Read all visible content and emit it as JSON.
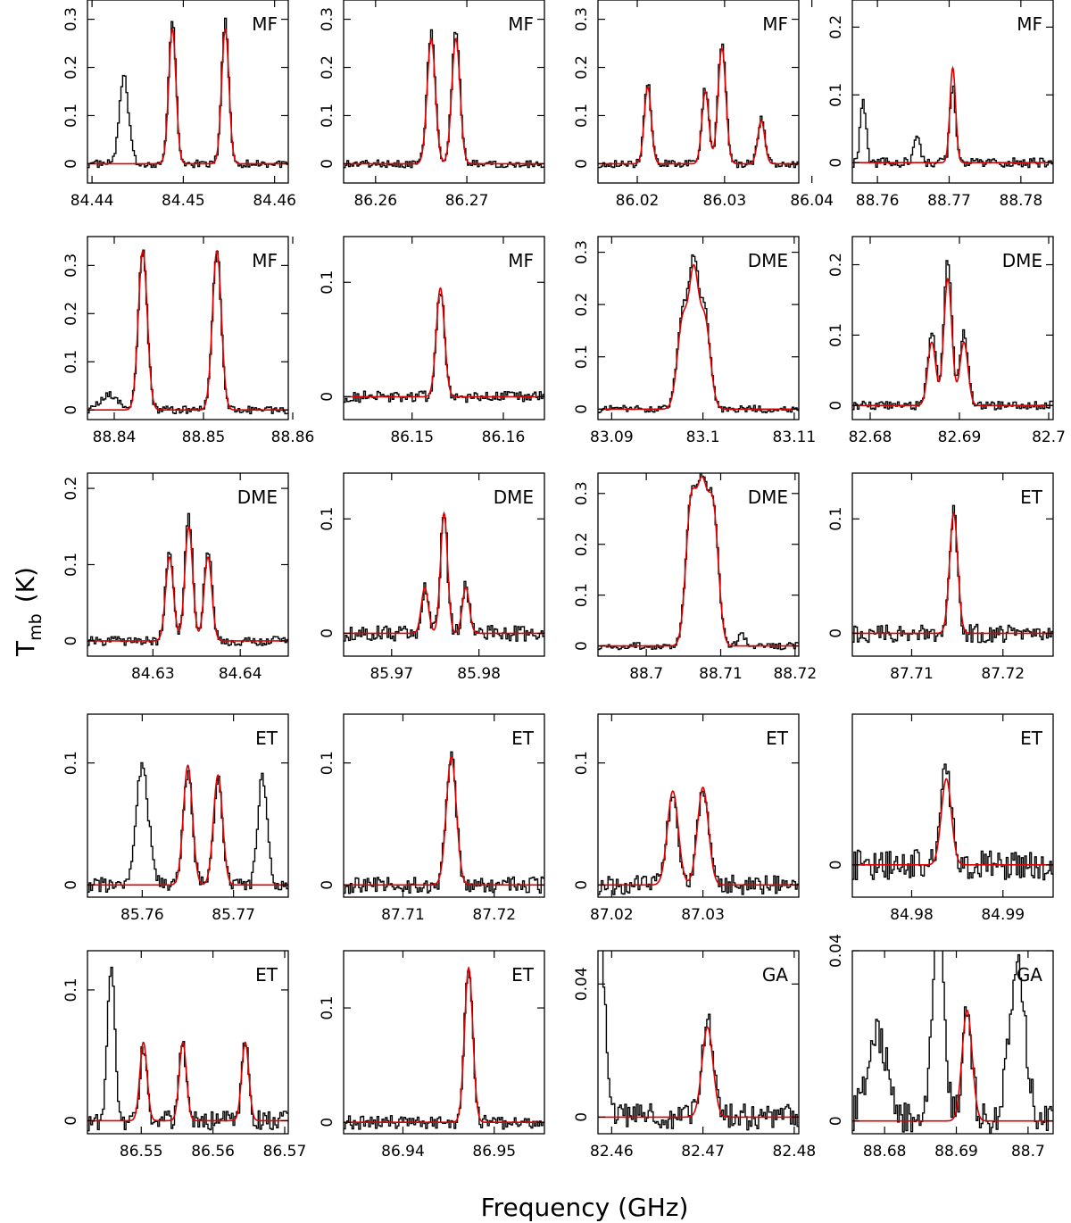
{
  "chart_data": {
    "type": "line",
    "title": "",
    "xlabel": "Frequency (GHz)",
    "ylabel_main": "T",
    "ylabel_sub": "mb",
    "ylabel_unit": "(K)",
    "colors": {
      "observed": "#000000",
      "model": "#dd0000"
    },
    "panels": [
      {
        "id": "p1",
        "label": "MF",
        "xlim": [
          84.4395,
          84.4615
        ],
        "ylim": [
          -0.04,
          0.34
        ],
        "xticks": [
          "84.44",
          "84.45",
          "84.46"
        ],
        "yticks": [
          "0",
          "0.1",
          "0.2",
          "0.3"
        ],
        "lines": [
          {
            "c": 84.4488,
            "a": 0.28,
            "s": 0.0004
          },
          {
            "c": 84.4546,
            "a": 0.28,
            "s": 0.0004
          }
        ],
        "extras": [
          {
            "c": 84.4435,
            "a": 0.18,
            "s": 0.0005
          }
        ],
        "obs_scale": 1.06,
        "noise": 0.008
      },
      {
        "id": "p2",
        "label": "MF",
        "xlim": [
          86.2565,
          86.2785
        ],
        "ylim": [
          -0.04,
          0.34
        ],
        "xticks": [
          "86.26",
          "86.27"
        ],
        "yticks": [
          "0",
          "0.1",
          "0.2",
          "0.3"
        ],
        "lines": [
          {
            "c": 86.2661,
            "a": 0.26,
            "s": 0.00045
          },
          {
            "c": 86.2688,
            "a": 0.26,
            "s": 0.00045
          }
        ],
        "extras": [],
        "obs_scale": 1.05,
        "noise": 0.008
      },
      {
        "id": "p3",
        "label": "MF",
        "xlim": [
          86.0155,
          86.0385
        ],
        "ylim": [
          -0.04,
          0.34
        ],
        "xticks": [
          "86.02",
          "86.03",
          "86.04"
        ],
        "yticks": [
          "0",
          "0.1",
          "0.2",
          "0.3"
        ],
        "lines": [
          {
            "c": 86.0212,
            "a": 0.16,
            "s": 0.0004
          },
          {
            "c": 86.0278,
            "a": 0.15,
            "s": 0.0004
          },
          {
            "c": 86.0297,
            "a": 0.24,
            "s": 0.00045
          },
          {
            "c": 86.0342,
            "a": 0.09,
            "s": 0.0004
          }
        ],
        "extras": [],
        "obs_scale": 1.05,
        "noise": 0.008
      },
      {
        "id": "p4",
        "label": "MF",
        "xlim": [
          88.7565,
          88.7845
        ],
        "ylim": [
          -0.03,
          0.24
        ],
        "xticks": [
          "88.76",
          "88.77",
          "88.78"
        ],
        "yticks": [
          "0",
          "0.1",
          "0.2"
        ],
        "lines": [
          {
            "c": 88.7705,
            "a": 0.14,
            "s": 0.0004
          }
        ],
        "extras": [
          {
            "c": 88.758,
            "a": 0.09,
            "s": 0.0004
          },
          {
            "c": 88.7655,
            "a": 0.04,
            "s": 0.0004
          }
        ],
        "obs_scale": 0.8,
        "noise": 0.007
      },
      {
        "id": "p5",
        "label": "MF",
        "xlim": [
          88.837,
          88.8595
        ],
        "ylim": [
          -0.02,
          0.36
        ],
        "xticks": [
          "88.84",
          "88.85",
          "88.86"
        ],
        "yticks": [
          "0",
          "0.1",
          "0.2",
          "0.3"
        ],
        "lines": [
          {
            "c": 88.8432,
            "a": 0.33,
            "s": 0.0005
          },
          {
            "c": 88.8515,
            "a": 0.33,
            "s": 0.0005
          }
        ],
        "extras": [
          {
            "c": 88.8395,
            "a": 0.03,
            "s": 0.001
          }
        ],
        "obs_scale": 1.0,
        "noise": 0.008
      },
      {
        "id": "p6",
        "label": "MF",
        "xlim": [
          86.1425,
          86.1645
        ],
        "ylim": [
          -0.02,
          0.14
        ],
        "xticks": [
          "86.15",
          "86.16"
        ],
        "yticks": [
          "0",
          "0.1"
        ],
        "lines": [
          {
            "c": 86.1531,
            "a": 0.095,
            "s": 0.00045
          }
        ],
        "extras": [],
        "obs_scale": 1.0,
        "noise": 0.005
      },
      {
        "id": "p7",
        "label": "DME",
        "xlim": [
          83.0885,
          83.1105
        ],
        "ylim": [
          -0.02,
          0.33
        ],
        "xticks": [
          "83.09",
          "83.1",
          "83.11"
        ],
        "yticks": [
          "0",
          "0.1",
          "0.2",
          "0.3"
        ],
        "lines": [
          {
            "c": 83.0978,
            "a": 0.17,
            "s": 0.0006
          },
          {
            "c": 83.099,
            "a": 0.23,
            "s": 0.0005
          },
          {
            "c": 83.1002,
            "a": 0.17,
            "s": 0.0006
          }
        ],
        "extras": [],
        "obs_scale": 1.08,
        "noise": 0.007
      },
      {
        "id": "p8",
        "label": "DME",
        "xlim": [
          82.678,
          82.7005
        ],
        "ylim": [
          -0.02,
          0.24
        ],
        "xticks": [
          "82.68",
          "82.69",
          "82.7"
        ],
        "yticks": [
          "0",
          "0.1",
          "0.2"
        ],
        "lines": [
          {
            "c": 82.6869,
            "a": 0.09,
            "s": 0.00045
          },
          {
            "c": 82.6887,
            "a": 0.18,
            "s": 0.00045
          },
          {
            "c": 82.6905,
            "a": 0.09,
            "s": 0.00045
          }
        ],
        "extras": [],
        "obs_scale": 1.15,
        "noise": 0.006
      },
      {
        "id": "p9",
        "label": "DME",
        "xlim": [
          84.6225,
          84.6455
        ],
        "ylim": [
          -0.02,
          0.22
        ],
        "xticks": [
          "84.63",
          "84.64"
        ],
        "yticks": [
          "0",
          "0.1",
          "0.2"
        ],
        "lines": [
          {
            "c": 84.6319,
            "a": 0.11,
            "s": 0.00045
          },
          {
            "c": 84.6341,
            "a": 0.15,
            "s": 0.00045
          },
          {
            "c": 84.6363,
            "a": 0.11,
            "s": 0.00045
          }
        ],
        "extras": [],
        "obs_scale": 1.1,
        "noise": 0.006
      },
      {
        "id": "p10",
        "label": "DME",
        "xlim": [
          85.9645,
          85.9875
        ],
        "ylim": [
          -0.02,
          0.14
        ],
        "xticks": [
          "85.97",
          "85.98"
        ],
        "yticks": [
          "0",
          "0.1"
        ],
        "lines": [
          {
            "c": 85.9738,
            "a": 0.04,
            "s": 0.0004
          },
          {
            "c": 85.976,
            "a": 0.105,
            "s": 0.0004
          },
          {
            "c": 85.9785,
            "a": 0.04,
            "s": 0.0004
          }
        ],
        "extras": [],
        "obs_scale": 1.0,
        "noise": 0.007
      },
      {
        "id": "p11",
        "label": "DME",
        "xlim": [
          88.6935,
          88.7205
        ],
        "ylim": [
          -0.02,
          0.34
        ],
        "xticks": [
          "88.7",
          "88.71",
          "88.72"
        ],
        "yticks": [
          "0",
          "0.1",
          "0.2",
          "0.3"
        ],
        "lines": [
          {
            "c": 88.706,
            "a": 0.27,
            "s": 0.0007
          },
          {
            "c": 88.7075,
            "a": 0.28,
            "s": 0.0007
          },
          {
            "c": 88.709,
            "a": 0.26,
            "s": 0.0007
          }
        ],
        "extras": [
          {
            "c": 88.7128,
            "a": 0.03,
            "s": 0.0004
          }
        ],
        "obs_scale": 1.02,
        "noise": 0.007
      },
      {
        "id": "p12",
        "label": "ET",
        "xlim": [
          87.7035,
          87.7255
        ],
        "ylim": [
          -0.02,
          0.14
        ],
        "xticks": [
          "87.71",
          "87.72"
        ],
        "yticks": [
          "0",
          "0.1"
        ],
        "lines": [
          {
            "c": 87.7146,
            "a": 0.105,
            "s": 0.00045
          }
        ],
        "extras": [],
        "obs_scale": 1.0,
        "noise": 0.008
      },
      {
        "id": "p13",
        "label": "ET",
        "xlim": [
          85.754,
          85.776
        ],
        "ylim": [
          -0.01,
          0.14
        ],
        "xticks": [
          "85.76",
          "85.77"
        ],
        "yticks": [
          "0",
          "0.1"
        ],
        "lines": [
          {
            "c": 85.765,
            "a": 0.098,
            "s": 0.0005
          },
          {
            "c": 85.7683,
            "a": 0.09,
            "s": 0.0005
          }
        ],
        "extras": [
          {
            "c": 85.76,
            "a": 0.095,
            "s": 0.0007
          },
          {
            "c": 85.7732,
            "a": 0.09,
            "s": 0.0005
          }
        ],
        "obs_scale": 0.95,
        "noise": 0.006
      },
      {
        "id": "p14",
        "label": "ET",
        "xlim": [
          87.7035,
          87.7255
        ],
        "ylim": [
          -0.01,
          0.14
        ],
        "xticks": [
          "87.71",
          "87.72"
        ],
        "yticks": [
          "0",
          "0.1"
        ],
        "lines": [
          {
            "c": 87.7153,
            "a": 0.105,
            "s": 0.00055
          }
        ],
        "extras": [],
        "obs_scale": 1.0,
        "noise": 0.007
      },
      {
        "id": "p15",
        "label": "ET",
        "xlim": [
          87.0185,
          87.0405
        ],
        "ylim": [
          -0.01,
          0.14
        ],
        "xticks": [
          "87.02",
          "87.03"
        ],
        "yticks": [
          "0",
          "0.1"
        ],
        "lines": [
          {
            "c": 87.0267,
            "a": 0.077,
            "s": 0.0006
          },
          {
            "c": 87.03,
            "a": 0.08,
            "s": 0.0006
          }
        ],
        "extras": [],
        "obs_scale": 0.98,
        "noise": 0.008
      },
      {
        "id": "p16",
        "label": "ET",
        "xlim": [
          84.9735,
          84.9955
        ],
        "ylim": [
          -0.03,
          0.14
        ],
        "xticks": [
          "84.98",
          "84.99"
        ],
        "yticks": [
          "0"
        ],
        "lines": [
          {
            "c": 84.9838,
            "a": 0.08,
            "s": 0.00055
          }
        ],
        "extras": [],
        "obs_scale": 1.1,
        "noise": 0.014
      },
      {
        "id": "p17",
        "label": "ET",
        "xlim": [
          86.5425,
          86.5705
        ],
        "ylim": [
          -0.01,
          0.13
        ],
        "xticks": [
          "86.55",
          "86.56",
          "86.57"
        ],
        "yticks": [
          "0",
          "0.1"
        ],
        "lines": [
          {
            "c": 86.5503,
            "a": 0.06,
            "s": 0.0005
          },
          {
            "c": 86.5558,
            "a": 0.06,
            "s": 0.0005
          },
          {
            "c": 86.5645,
            "a": 0.06,
            "s": 0.0005
          }
        ],
        "extras": [
          {
            "c": 86.5458,
            "a": 0.12,
            "s": 0.0005
          }
        ],
        "obs_scale": 0.95,
        "noise": 0.008
      },
      {
        "id": "p18",
        "label": "ET",
        "xlim": [
          86.9335,
          86.9555
        ],
        "ylim": [
          -0.01,
          0.15
        ],
        "xticks": [
          "86.94",
          "86.95"
        ],
        "yticks": [
          "0",
          "0.1"
        ],
        "lines": [
          {
            "c": 86.9472,
            "a": 0.135,
            "s": 0.00045
          }
        ],
        "extras": [],
        "obs_scale": 1.0,
        "noise": 0.006
      },
      {
        "id": "p19",
        "label": "GA",
        "xlim": [
          82.4585,
          82.4805
        ],
        "ylim": [
          -0.005,
          0.05
        ],
        "xticks": [
          "82.46",
          "82.47",
          "82.48"
        ],
        "yticks": [
          "0",
          "0.04"
        ],
        "lines": [
          {
            "c": 82.4705,
            "a": 0.027,
            "s": 0.0006
          }
        ],
        "extras": [
          {
            "c": 82.4585,
            "a": 0.06,
            "s": 0.0007
          }
        ],
        "obs_scale": 1.1,
        "noise": 0.004
      },
      {
        "id": "p20",
        "label": "GA",
        "xlim": [
          88.6755,
          88.7035
        ],
        "ylim": [
          -0.003,
          0.04
        ],
        "xticks": [
          "88.68",
          "88.69",
          "88.7"
        ],
        "yticks": [
          "0",
          "0.04"
        ],
        "lines": [
          {
            "c": 88.6915,
            "a": 0.026,
            "s": 0.0007
          }
        ],
        "extras": [
          {
            "c": 88.6875,
            "a": 0.05,
            "s": 0.0008
          },
          {
            "c": 88.6985,
            "a": 0.036,
            "s": 0.0011
          },
          {
            "c": 88.679,
            "a": 0.02,
            "s": 0.0015
          }
        ],
        "obs_scale": 0.95,
        "noise": 0.004
      }
    ]
  }
}
